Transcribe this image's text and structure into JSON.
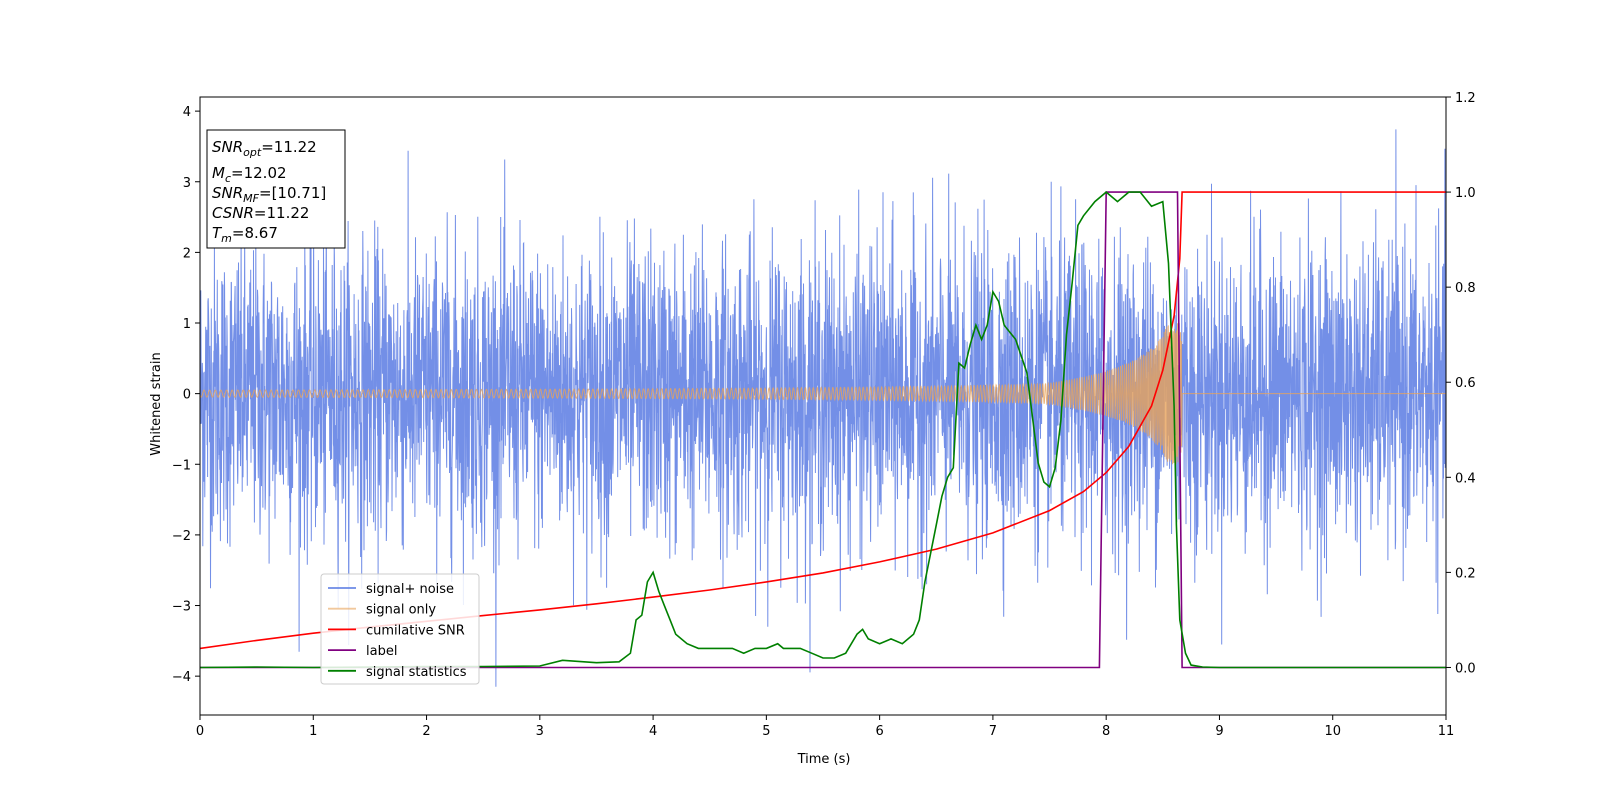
{
  "chart_data": {
    "type": "line",
    "xlabel": "Time (s)",
    "ylabel": "Whitened strain",
    "xlim": [
      0,
      11
    ],
    "ylim": [
      -4.55,
      4.2
    ],
    "y2lim": [
      -0.1,
      1.2
    ],
    "x_ticks": [
      "0",
      "1",
      "2",
      "3",
      "4",
      "5",
      "6",
      "7",
      "8",
      "9",
      "10",
      "11"
    ],
    "x_tick_values": [
      0,
      1,
      2,
      3,
      4,
      5,
      6,
      7,
      8,
      9,
      10,
      11
    ],
    "y_ticks": [
      "4",
      "3",
      "2",
      "1",
      "0",
      "−1",
      "−2",
      "−3",
      "−4"
    ],
    "y_tick_values": [
      4,
      3,
      2,
      1,
      0,
      -1,
      -2,
      -3,
      -4
    ],
    "y2_ticks": [
      "1.2",
      "1.0",
      "0.8",
      "0.6",
      "0.4",
      "0.2",
      "0.0"
    ],
    "y2_tick_values": [
      1.2,
      1.0,
      0.8,
      0.6,
      0.4,
      0.2,
      0.0
    ],
    "grid": false,
    "legend_position": "lower-left",
    "annotation": {
      "lines": [
        {
          "base": "SNR",
          "sub": "opt",
          "value": "=11.22"
        },
        {
          "base": "M",
          "sub": "c",
          "value": "=12.02"
        },
        {
          "base": "SNR",
          "sub": "MF",
          "value": "=[10.71]"
        },
        {
          "base": "CSNR",
          "sub": "",
          "value": "=11.22"
        },
        {
          "base": "T",
          "sub": "m",
          "value": "=8.67"
        }
      ]
    },
    "series": [
      {
        "name": "signal+ noise",
        "axis": "left",
        "color": "#6b89e6",
        "kind": "noise",
        "description_values": {
          "mean": 0.0,
          "sigma": 1.05,
          "min": -4.15,
          "max": 3.82
        }
      },
      {
        "name": "signal only",
        "axis": "left",
        "color": "#e8a35a",
        "kind": "chirp",
        "values": {
          "t_merge": 8.67,
          "amp_start": 0.05,
          "amp_peak": 1.0
        }
      },
      {
        "name": "cumilative SNR",
        "axis": "right",
        "color": "#ff0000",
        "x": [
          0,
          0.5,
          1,
          1.5,
          2,
          2.5,
          3,
          3.5,
          4,
          4.5,
          5,
          5.5,
          6,
          6.5,
          7,
          7.5,
          7.8,
          8,
          8.2,
          8.4,
          8.5,
          8.6,
          8.65,
          8.67,
          8.7,
          11
        ],
        "values": [
          0.04,
          0.057,
          0.072,
          0.085,
          0.097,
          0.109,
          0.121,
          0.134,
          0.148,
          0.163,
          0.18,
          0.199,
          0.222,
          0.249,
          0.283,
          0.33,
          0.37,
          0.41,
          0.465,
          0.55,
          0.625,
          0.74,
          0.86,
          1.0,
          1.0,
          1.0
        ]
      },
      {
        "name": "label",
        "axis": "right",
        "color": "#800080",
        "x": [
          0,
          7.94,
          8.0,
          8.63,
          8.67,
          11
        ],
        "values": [
          0,
          0,
          1,
          1,
          0,
          0
        ]
      },
      {
        "name": "signal statistics",
        "axis": "right",
        "color": "#008000",
        "x": [
          0,
          0.5,
          1,
          2,
          2.5,
          3,
          3.2,
          3.5,
          3.7,
          3.8,
          3.85,
          3.9,
          3.95,
          4.0,
          4.05,
          4.1,
          4.15,
          4.2,
          4.3,
          4.4,
          4.5,
          4.6,
          4.7,
          4.8,
          4.9,
          5.0,
          5.1,
          5.15,
          5.2,
          5.3,
          5.4,
          5.5,
          5.6,
          5.7,
          5.8,
          5.85,
          5.9,
          6.0,
          6.1,
          6.2,
          6.3,
          6.35,
          6.4,
          6.5,
          6.55,
          6.6,
          6.65,
          6.7,
          6.75,
          6.8,
          6.85,
          6.9,
          6.95,
          7.0,
          7.05,
          7.1,
          7.2,
          7.3,
          7.4,
          7.45,
          7.5,
          7.55,
          7.6,
          7.65,
          7.7,
          7.75,
          7.8,
          7.9,
          8.0,
          8.1,
          8.2,
          8.3,
          8.4,
          8.5,
          8.55,
          8.6,
          8.62,
          8.65,
          8.7,
          8.75,
          8.85,
          9.0,
          11
        ],
        "values": [
          0,
          0.001,
          0,
          0.002,
          0.002,
          0.003,
          0.015,
          0.01,
          0.012,
          0.03,
          0.1,
          0.11,
          0.18,
          0.2,
          0.16,
          0.13,
          0.1,
          0.07,
          0.05,
          0.04,
          0.04,
          0.04,
          0.04,
          0.03,
          0.04,
          0.04,
          0.05,
          0.04,
          0.04,
          0.04,
          0.03,
          0.02,
          0.02,
          0.03,
          0.07,
          0.08,
          0.06,
          0.05,
          0.06,
          0.05,
          0.07,
          0.1,
          0.18,
          0.3,
          0.36,
          0.4,
          0.42,
          0.64,
          0.63,
          0.68,
          0.72,
          0.69,
          0.72,
          0.79,
          0.77,
          0.72,
          0.69,
          0.62,
          0.43,
          0.39,
          0.38,
          0.42,
          0.52,
          0.7,
          0.81,
          0.93,
          0.95,
          0.98,
          1.0,
          0.98,
          1.0,
          1.0,
          0.97,
          0.98,
          0.85,
          0.55,
          0.3,
          0.1,
          0.03,
          0.005,
          0.001,
          0,
          0
        ]
      }
    ]
  }
}
